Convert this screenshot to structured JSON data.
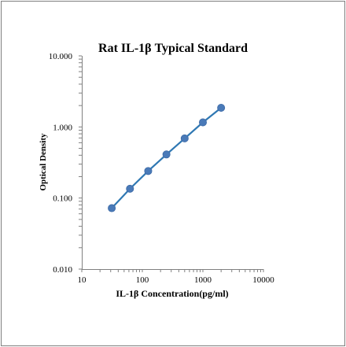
{
  "chart_data": {
    "type": "scatter",
    "title": "Rat IL-1β Typical Standard",
    "xlabel": "IL-1β Concentration(pg/ml)",
    "ylabel": "Optical Density",
    "x_scale": "log",
    "y_scale": "log",
    "xlim": [
      10,
      10000
    ],
    "ylim": [
      0.01,
      10
    ],
    "x_ticks": [
      "10",
      "100",
      "1000",
      "10000"
    ],
    "y_ticks": [
      "0.010",
      "0.100",
      "1.000",
      "10.000"
    ],
    "grid": false,
    "legend": "none",
    "series": [
      {
        "x": [
          31.25,
          62.5,
          125,
          250,
          500,
          1000,
          2000
        ],
        "y": [
          0.072,
          0.135,
          0.24,
          0.41,
          0.69,
          1.16,
          1.86
        ],
        "marker_color": "#4a7ab8",
        "line_color": "#2f78b3"
      }
    ]
  }
}
